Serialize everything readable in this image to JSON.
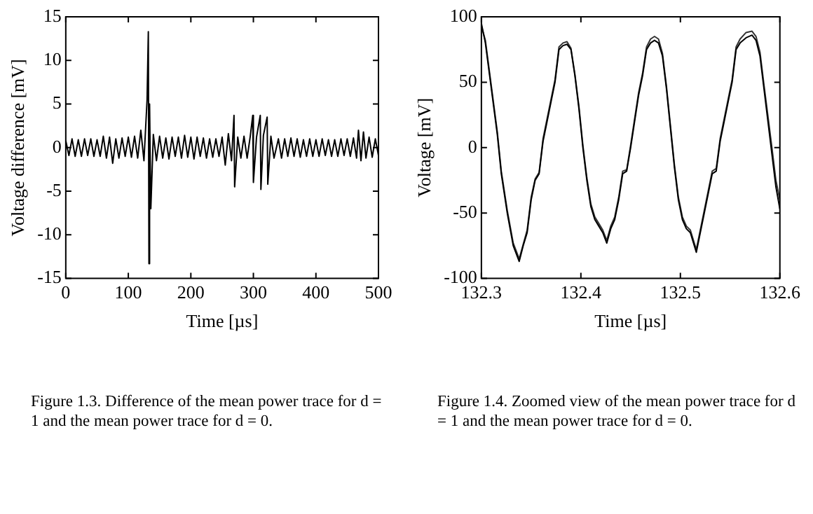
{
  "chart_data": [
    {
      "type": "line",
      "xlabel": "Time [µs]",
      "ylabel": "Voltage difference [mV]",
      "xlim": [
        0,
        500
      ],
      "xticks": [
        0,
        100,
        200,
        300,
        400,
        500
      ],
      "ylim": [
        -15,
        15
      ],
      "yticks": [
        -15,
        -10,
        -5,
        0,
        5,
        10,
        15
      ],
      "legend": false,
      "marker": "none",
      "x": [
        0,
        5,
        10,
        15,
        20,
        25,
        30,
        35,
        40,
        45,
        50,
        55,
        60,
        65,
        70,
        75,
        80,
        85,
        90,
        95,
        100,
        105,
        110,
        115,
        120,
        125,
        130,
        132,
        133,
        134,
        136,
        140,
        145,
        150,
        155,
        160,
        165,
        170,
        175,
        180,
        185,
        190,
        195,
        200,
        205,
        210,
        215,
        220,
        225,
        230,
        235,
        240,
        245,
        250,
        255,
        260,
        265,
        269,
        270,
        275,
        280,
        285,
        290,
        295,
        299,
        300,
        305,
        311,
        312,
        316,
        322,
        323,
        328,
        333,
        340,
        345,
        350,
        355,
        360,
        365,
        370,
        375,
        380,
        385,
        390,
        395,
        400,
        405,
        410,
        415,
        420,
        425,
        430,
        435,
        440,
        445,
        450,
        455,
        460,
        465,
        468,
        472,
        476,
        480,
        485,
        490,
        495,
        500
      ],
      "series": [
        {
          "color": "#000000",
          "values": [
            0.8,
            -0.9,
            1,
            -1,
            0.9,
            -1,
            1,
            -0.9,
            1,
            -1,
            0.9,
            -1,
            1.3,
            -1.2,
            1.2,
            -1.8,
            1,
            -1.2,
            1.1,
            -1,
            1.2,
            -1.1,
            1.3,
            -1.2,
            2,
            -1.5,
            5.5,
            13.3,
            -13.3,
            5,
            -7,
            1.5,
            -1.5,
            1.3,
            -1.2,
            1.1,
            -1.3,
            1.2,
            -1,
            1.2,
            -1.2,
            1.4,
            -1.1,
            1.2,
            -1.3,
            1.2,
            -1,
            1.1,
            -1.2,
            1,
            -1.1,
            1,
            -1,
            1.2,
            -2,
            1.6,
            -1.5,
            3.7,
            -4.5,
            1.2,
            -1.2,
            1.3,
            -1.2,
            1.3,
            3.7,
            -4,
            1.2,
            3.7,
            -4.8,
            1.4,
            3.5,
            -4.2,
            1.3,
            -1.2,
            1,
            -1.2,
            1,
            -1,
            1.1,
            -1,
            1,
            -1.1,
            0.9,
            -1,
            1,
            -1,
            0.9,
            -1,
            1,
            -0.9,
            0.9,
            -1,
            0.9,
            -1,
            1,
            -0.9,
            1,
            -1,
            1.1,
            -1.2,
            2,
            -1.5,
            1.8,
            -1.2,
            1.2,
            -1.1,
            1,
            -0.9
          ]
        }
      ],
      "annotations": [
        "Figure 1.3. Difference of the mean power trace for d = 1 and the mean power trace for d = 0."
      ]
    },
    {
      "type": "line",
      "xlabel": "Time [µs]",
      "ylabel": "Voltage [mV]",
      "xlim": [
        132.3,
        132.6
      ],
      "xticks": [
        132.3,
        132.4,
        132.5,
        132.6
      ],
      "ylim": [
        -100,
        100
      ],
      "yticks": [
        -100,
        -50,
        0,
        50,
        100
      ],
      "legend": false,
      "marker": "none",
      "x": [
        132.3,
        132.304,
        132.31,
        132.316,
        132.32,
        132.326,
        132.332,
        132.338,
        132.342,
        132.346,
        132.35,
        132.354,
        132.358,
        132.362,
        132.366,
        132.37,
        132.374,
        132.378,
        132.382,
        132.386,
        132.39,
        132.394,
        132.398,
        132.402,
        132.406,
        132.41,
        132.414,
        132.418,
        132.422,
        132.426,
        132.43,
        132.434,
        132.438,
        132.442,
        132.446,
        132.45,
        132.454,
        132.458,
        132.462,
        132.466,
        132.47,
        132.474,
        132.478,
        132.482,
        132.486,
        132.49,
        132.494,
        132.498,
        132.502,
        132.506,
        132.51,
        132.516,
        132.52,
        132.524,
        132.528,
        132.532,
        132.536,
        132.54,
        132.544,
        132.548,
        132.552,
        132.556,
        132.56,
        132.566,
        132.572,
        132.576,
        132.58,
        132.584,
        132.588,
        132.592,
        132.596,
        132.6
      ],
      "series": [
        {
          "color": "#000000",
          "values": [
            95,
            80,
            45,
            10,
            -20,
            -50,
            -75,
            -87,
            -75,
            -65,
            -40,
            -25,
            -20,
            5,
            20,
            35,
            50,
            75,
            78,
            79,
            75,
            55,
            30,
            0,
            -25,
            -45,
            -55,
            -60,
            -65,
            -73,
            -62,
            -55,
            -40,
            -20,
            -18,
            0,
            20,
            40,
            55,
            75,
            80,
            82,
            80,
            70,
            45,
            15,
            -15,
            -40,
            -55,
            -62,
            -65,
            -80,
            -65,
            -50,
            -35,
            -20,
            -18,
            5,
            20,
            35,
            50,
            75,
            80,
            84,
            86,
            82,
            70,
            45,
            20,
            -5,
            -30,
            -47
          ]
        },
        {
          "color": "#333333",
          "values": [
            93,
            82,
            47,
            12,
            -18,
            -48,
            -73,
            -85,
            -74,
            -63,
            -38,
            -24,
            -19,
            7,
            22,
            37,
            52,
            77,
            80,
            81,
            76,
            56,
            32,
            2,
            -23,
            -43,
            -53,
            -58,
            -63,
            -71,
            -60,
            -53,
            -38,
            -18,
            -17,
            2,
            22,
            42,
            57,
            77,
            83,
            85,
            83,
            72,
            47,
            17,
            -13,
            -38,
            -53,
            -60,
            -63,
            -78,
            -63,
            -48,
            -33,
            -18,
            -16,
            7,
            22,
            37,
            52,
            77,
            83,
            88,
            89,
            85,
            73,
            48,
            24,
            0,
            -25,
            -40
          ]
        }
      ],
      "annotations": [
        "Figure 1.4. Zoomed view of the mean power trace for d = 1 and the mean power trace for d = 0."
      ]
    }
  ]
}
